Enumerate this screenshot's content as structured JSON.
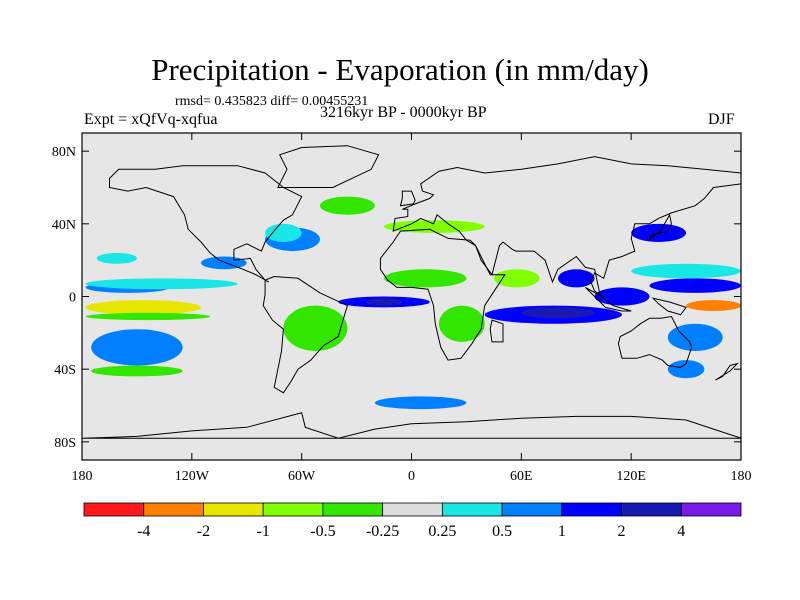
{
  "chart_data": {
    "type": "heatmap",
    "title": "Precipitation - Evaporation (in mm/day)",
    "stats_text": "rmsd= 0.435823 diff= 0.00455231",
    "experiment_label": "Expt = xQfVq-xqfua",
    "period_label": "3216kyr BP - 0000kyr BP",
    "season_label": "DJF",
    "xlim": [
      -180,
      180
    ],
    "ylim": [
      -90,
      90
    ],
    "x_ticks": [
      {
        "value": -180,
        "label": "180"
      },
      {
        "value": -120,
        "label": "120W"
      },
      {
        "value": -60,
        "label": "60W"
      },
      {
        "value": 0,
        "label": "0"
      },
      {
        "value": 60,
        "label": "60E"
      },
      {
        "value": 120,
        "label": "120E"
      },
      {
        "value": 180,
        "label": "180"
      }
    ],
    "y_ticks": [
      {
        "value": 80,
        "label": "80N"
      },
      {
        "value": 40,
        "label": "40N"
      },
      {
        "value": 0,
        "label": "0"
      },
      {
        "value": -40,
        "label": "40S"
      },
      {
        "value": -80,
        "label": "80S"
      }
    ],
    "colorbar": {
      "colors": [
        "#ff1a1a",
        "#ff8000",
        "#e6e600",
        "#80ff00",
        "#33e600",
        "#dcdcdc",
        "#1ae6e6",
        "#0080ff",
        "#0000ff",
        "#1a1ab3",
        "#7a1ae6"
      ],
      "labels": [
        "-4",
        "-2",
        "-1",
        "-0.5",
        "-0.25",
        "0.25",
        "0.5",
        "1",
        "2",
        "4"
      ]
    },
    "background_color": "#e6e6e6",
    "regions": [
      {
        "name": "north-pacific-band",
        "lon": [
          -178,
          -132
        ],
        "lat": [
          2,
          8
        ],
        "level": 7
      },
      {
        "name": "pacific-itcz",
        "lon": [
          -178,
          -95
        ],
        "lat": [
          4,
          10
        ],
        "level": 6
      },
      {
        "name": "pacific-equatorial-dry",
        "lon": [
          -178,
          -115
        ],
        "lat": [
          -10,
          -2
        ],
        "level": 2
      },
      {
        "name": "pacific-equatorial-green",
        "lon": [
          -178,
          -110
        ],
        "lat": [
          -13,
          -9
        ],
        "level": 4
      },
      {
        "name": "south-pacific-wet",
        "lon": [
          -170,
          -140
        ],
        "lat": [
          -32,
          -22
        ],
        "level": 8
      },
      {
        "name": "south-pacific-halo",
        "lon": [
          -175,
          -125
        ],
        "lat": [
          -38,
          -18
        ],
        "level": 7
      },
      {
        "name": "south-pacific-green",
        "lon": [
          -175,
          -125
        ],
        "lat": [
          -44,
          -38
        ],
        "level": 4
      },
      {
        "name": "amazon-south",
        "lon": [
          -62,
          -38
        ],
        "lat": [
          -25,
          -10
        ],
        "level": 3
      },
      {
        "name": "amazon-green",
        "lon": [
          -70,
          -35
        ],
        "lat": [
          -30,
          -5
        ],
        "level": 4
      },
      {
        "name": "atlantic-itcz",
        "lon": [
          -40,
          10
        ],
        "lat": [
          -6,
          0
        ],
        "level": 8
      },
      {
        "name": "atlantic-itcz-dark",
        "lon": [
          -25,
          -5
        ],
        "lat": [
          -5,
          -1
        ],
        "level": 9
      },
      {
        "name": "north-atlantic-blue",
        "lon": [
          -80,
          -50
        ],
        "lat": [
          25,
          38
        ],
        "level": 7
      },
      {
        "name": "gulf-stream",
        "lon": [
          -80,
          -60
        ],
        "lat": [
          30,
          40
        ],
        "level": 6
      },
      {
        "name": "mediterranean",
        "lon": [
          -15,
          40
        ],
        "lat": [
          35,
          42
        ],
        "level": 3
      },
      {
        "name": "sahel-dry",
        "lon": [
          -15,
          30
        ],
        "lat": [
          5,
          15
        ],
        "level": 4
      },
      {
        "name": "africa-south",
        "lon": [
          15,
          40
        ],
        "lat": [
          -25,
          -5
        ],
        "level": 4
      },
      {
        "name": "arabian-sea",
        "lon": [
          45,
          70
        ],
        "lat": [
          5,
          15
        ],
        "level": 3
      },
      {
        "name": "indian-ocean-blue",
        "lon": [
          40,
          115
        ],
        "lat": [
          -15,
          -5
        ],
        "level": 8
      },
      {
        "name": "indian-ocean-dark",
        "lon": [
          60,
          100
        ],
        "lat": [
          -12,
          -6
        ],
        "level": 9
      },
      {
        "name": "bay-of-bengal",
        "lon": [
          80,
          100
        ],
        "lat": [
          5,
          15
        ],
        "level": 8
      },
      {
        "name": "maritime-continent",
        "lon": [
          100,
          130
        ],
        "lat": [
          -5,
          5
        ],
        "level": 8
      },
      {
        "name": "west-pacific-dry",
        "lon": [
          150,
          180
        ],
        "lat": [
          -8,
          -2
        ],
        "level": 1
      },
      {
        "name": "west-pacific-wet",
        "lon": [
          130,
          180
        ],
        "lat": [
          2,
          10
        ],
        "level": 8
      },
      {
        "name": "west-pacific-cyan",
        "lon": [
          120,
          180
        ],
        "lat": [
          10,
          18
        ],
        "level": 6
      },
      {
        "name": "north-pacific-cyan",
        "lon": [
          -172,
          -150
        ],
        "lat": [
          18,
          24
        ],
        "level": 6
      },
      {
        "name": "east-pacific-blue",
        "lon": [
          -115,
          -90
        ],
        "lat": [
          15,
          22
        ],
        "level": 7
      },
      {
        "name": "southern-ocean",
        "lon": [
          -20,
          30
        ],
        "lat": [
          -62,
          -55
        ],
        "level": 7
      },
      {
        "name": "southern-ocean-east",
        "lon": [
          140,
          160
        ],
        "lat": [
          -45,
          -35
        ],
        "level": 7
      },
      {
        "name": "australia-east",
        "lon": [
          140,
          170
        ],
        "lat": [
          -30,
          -15
        ],
        "level": 7
      },
      {
        "name": "japan-wet",
        "lon": [
          120,
          150
        ],
        "lat": [
          30,
          40
        ],
        "level": 8
      },
      {
        "name": "north-atlantic-green",
        "lon": [
          -50,
          -20
        ],
        "lat": [
          45,
          55
        ],
        "level": 4
      }
    ]
  }
}
